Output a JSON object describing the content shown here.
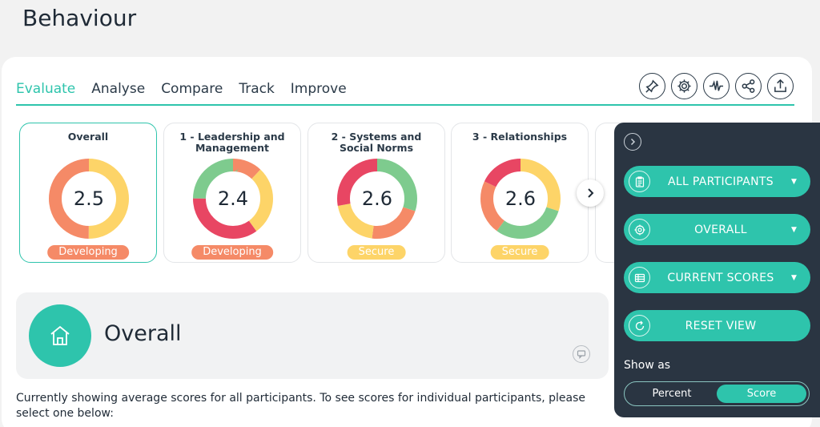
{
  "page": {
    "title": "Behaviour"
  },
  "tabs": [
    {
      "label": "Evaluate",
      "active": true
    },
    {
      "label": "Analyse",
      "active": false
    },
    {
      "label": "Compare",
      "active": false
    },
    {
      "label": "Track",
      "active": false
    },
    {
      "label": "Improve",
      "active": false
    }
  ],
  "toolbar": {
    "icons": [
      "pin-icon",
      "gear-icon",
      "pulse-icon",
      "share-icon",
      "upload-icon"
    ]
  },
  "score_cards": [
    {
      "title": "Overall",
      "score": "2.5",
      "status": "Developing",
      "status_color": "#f58a67",
      "selected": true,
      "segments": [
        {
          "color": "#fdd468",
          "fraction": 0.5
        },
        {
          "color": "#f58a67",
          "fraction": 0.5
        }
      ]
    },
    {
      "title": "1 - Leadership and Management",
      "score": "2.4",
      "status": "Developing",
      "status_color": "#f58a67",
      "selected": false,
      "segments": [
        {
          "color": "#f58a67",
          "fraction": 0.12
        },
        {
          "color": "#fdd468",
          "fraction": 0.28
        },
        {
          "color": "#e84663",
          "fraction": 0.35
        },
        {
          "color": "#7ecb8e",
          "fraction": 0.25
        }
      ]
    },
    {
      "title": "2 - Systems and Social Norms",
      "score": "2.6",
      "status": "Secure",
      "status_color": "#fdd468",
      "selected": false,
      "segments": [
        {
          "color": "#7ecb8e",
          "fraction": 0.3
        },
        {
          "color": "#f58a67",
          "fraction": 0.22
        },
        {
          "color": "#fdd468",
          "fraction": 0.2
        },
        {
          "color": "#e84663",
          "fraction": 0.28
        }
      ]
    },
    {
      "title": "3 - Relationships",
      "score": "2.6",
      "status": "Secure",
      "status_color": "#fdd468",
      "selected": false,
      "segments": [
        {
          "color": "#fdd468",
          "fraction": 0.3
        },
        {
          "color": "#7ecb8e",
          "fraction": 0.3
        },
        {
          "color": "#f58a67",
          "fraction": 0.22
        },
        {
          "color": "#e84663",
          "fraction": 0.18
        }
      ]
    }
  ],
  "overall": {
    "heading": "Overall",
    "description": "Currently showing average scores for all participants. To see scores for individual participants, please select one below:"
  },
  "side_panel": {
    "participants_label": "ALL PARTICIPANTS",
    "focus_label": "OVERALL",
    "scores_label": "CURRENT SCORES",
    "reset_label": "RESET VIEW",
    "show_as_label": "Show as",
    "toggle": {
      "percent": "Percent",
      "score": "Score",
      "selected": "Score"
    }
  },
  "colors": {
    "accent": "#2ec4ac",
    "dark_panel": "#2a3542"
  }
}
